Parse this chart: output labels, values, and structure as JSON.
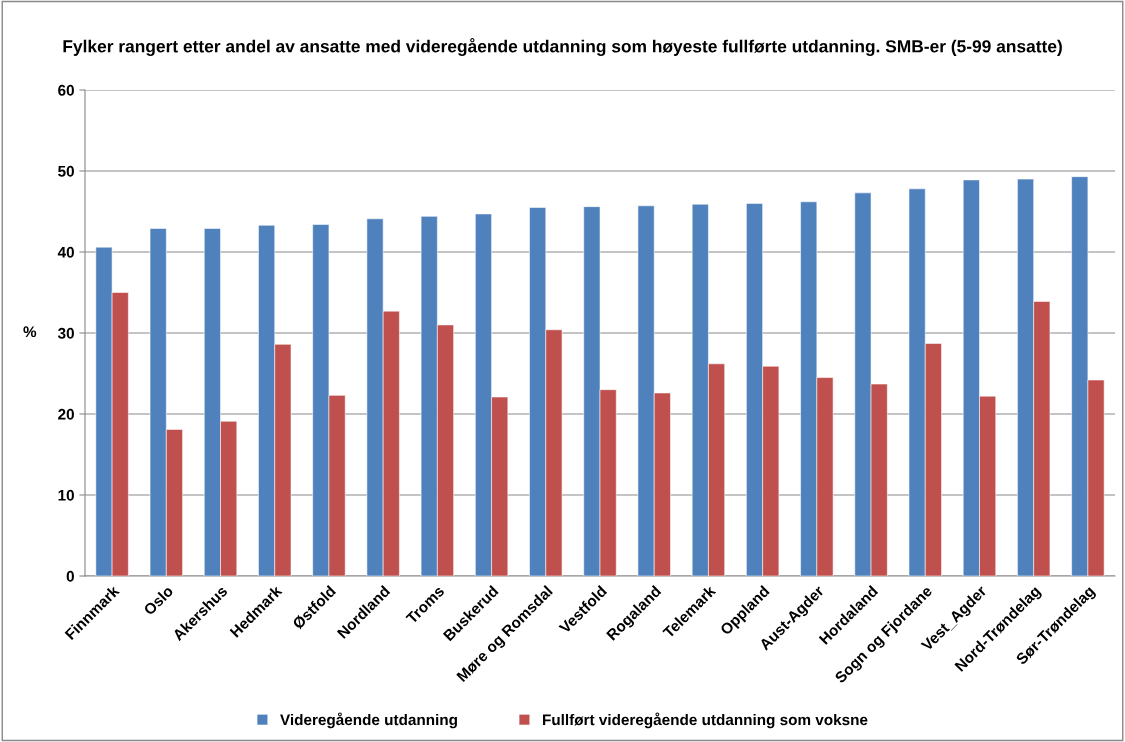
{
  "chart_data": {
    "type": "bar",
    "title": "Fylker rangert etter andel av ansatte med videregående utdanning som høyeste fullførte utdanning. SMB-er (5-99 ansatte)",
    "ylabel": "%",
    "categories": [
      "Finnmark",
      "Oslo",
      "Akershus",
      "Hedmark",
      "Østfold",
      "Nordland",
      "Troms",
      "Buskerud",
      "Møre og Romsdal",
      "Vestfold",
      "Rogaland",
      "Telemark",
      "Oppland",
      "Aust-Agder",
      "Hordaland",
      "Sogn og Fjordane",
      "Vest_Agder",
      "Nord-Trøndelag",
      "Sør-Trøndelag"
    ],
    "series": [
      {
        "name": "Videregående utdanning",
        "color": "#4f81bd",
        "values": [
          40.6,
          42.9,
          42.9,
          43.3,
          43.4,
          44.1,
          44.4,
          44.7,
          45.5,
          45.6,
          45.7,
          45.9,
          46.0,
          46.2,
          47.3,
          47.8,
          48.9,
          49.0,
          49.3
        ]
      },
      {
        "name": "Fullført videregående utdanning som voksne",
        "color": "#c0504d",
        "values": [
          35.0,
          18.1,
          19.1,
          28.6,
          22.3,
          32.7,
          31.0,
          22.1,
          30.4,
          23.0,
          22.6,
          26.2,
          25.9,
          24.5,
          23.7,
          28.7,
          22.2,
          33.9,
          24.2
        ]
      }
    ],
    "ylim": [
      0,
      60
    ],
    "yticks": [
      0,
      10,
      20,
      30,
      40,
      50,
      60
    ],
    "grid": "y",
    "legend": "bottom"
  }
}
